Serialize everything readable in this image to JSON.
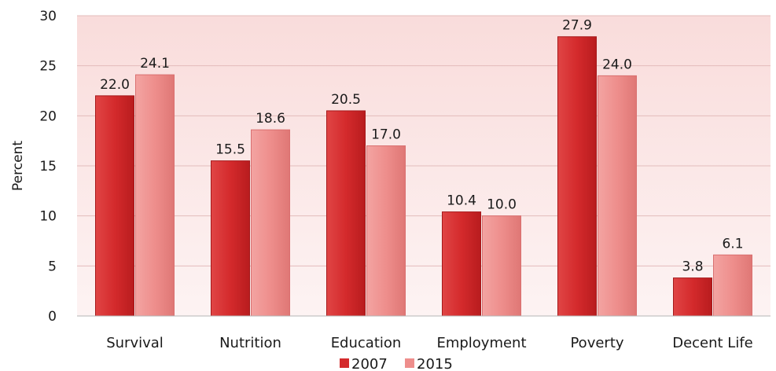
{
  "chart_data": {
    "type": "bar",
    "categories": [
      "Survival",
      "Nutrition",
      "Education",
      "Employment",
      "Poverty",
      "Decent Life"
    ],
    "series": [
      {
        "name": "2007",
        "values": [
          22.0,
          15.5,
          20.5,
          10.4,
          27.9,
          3.8
        ],
        "labels": [
          "22.0",
          "15.5",
          "20.5",
          "10.4",
          "27.9",
          "3.8"
        ],
        "color": "#d42a2c"
      },
      {
        "name": "2015",
        "values": [
          24.1,
          18.6,
          17.0,
          10.0,
          24.0,
          6.1
        ],
        "labels": [
          "24.1",
          "18.6",
          "17.0",
          "10.0",
          "24.0",
          "6.1"
        ],
        "color": "#ee8e8c"
      }
    ],
    "title": "",
    "xlabel": "",
    "ylabel": "Percent",
    "ylim": [
      0,
      30
    ],
    "yticks": [
      "0",
      "5",
      "10",
      "15",
      "20",
      "25",
      "30"
    ],
    "grid": true,
    "legend_position": "bottom-center",
    "plot_background": "#fbe9e8"
  }
}
